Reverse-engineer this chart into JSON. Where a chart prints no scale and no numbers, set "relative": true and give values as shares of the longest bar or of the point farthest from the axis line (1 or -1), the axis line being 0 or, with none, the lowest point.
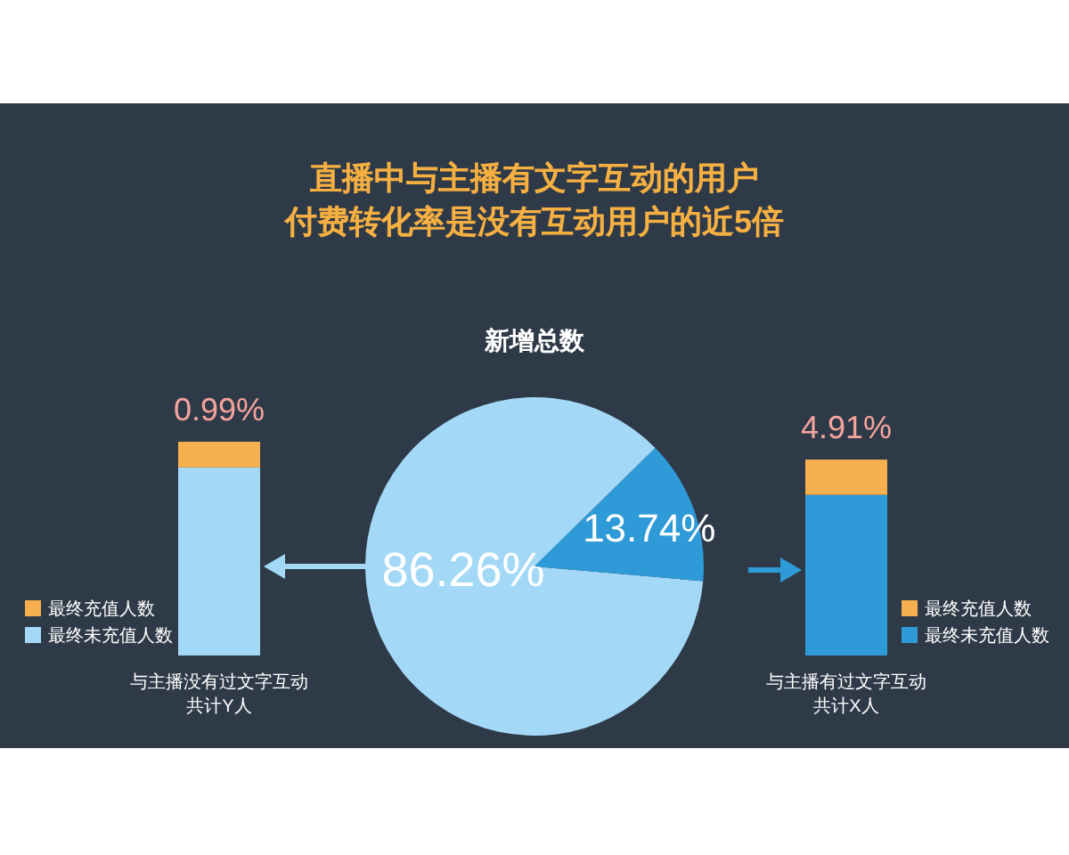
{
  "chart_data": [
    {
      "type": "pie",
      "title": "直播中与主播有文字互动的用户付费转化率是没有互动用户的近5倍",
      "subtitle": "新增总数",
      "categories": [
        null,
        null
      ],
      "values": [
        86.26,
        13.74
      ],
      "colors": [
        "#a3d9f6",
        "#2e9bd8"
      ],
      "value_labels": [
        "86.26%",
        "13.74%"
      ]
    },
    {
      "type": "bar",
      "stacked": true,
      "relative": true,
      "categories": [
        null
      ],
      "xlabel": "与主播没有过文字互动共计Y人",
      "legend": "left",
      "annotations": [
        "0.99%"
      ],
      "series": [
        {
          "name": "最终未充值人数",
          "color": "#a3d9f6",
          "values": [
            0.88
          ]
        },
        {
          "name": "最终充值人数",
          "color": "#f7b04f",
          "values": [
            0.12
          ]
        }
      ]
    },
    {
      "type": "bar",
      "stacked": true,
      "relative": true,
      "categories": [
        null
      ],
      "xlabel": "与主播有过文字互动共计X人",
      "legend": "right",
      "annotations": [
        "4.91%"
      ],
      "series": [
        {
          "name": "最终未充值人数",
          "color": "#2e9bd8",
          "values": [
            0.82
          ]
        },
        {
          "name": "最终充值人数",
          "color": "#f7b04f",
          "values": [
            0.18
          ]
        }
      ]
    }
  ]
}
